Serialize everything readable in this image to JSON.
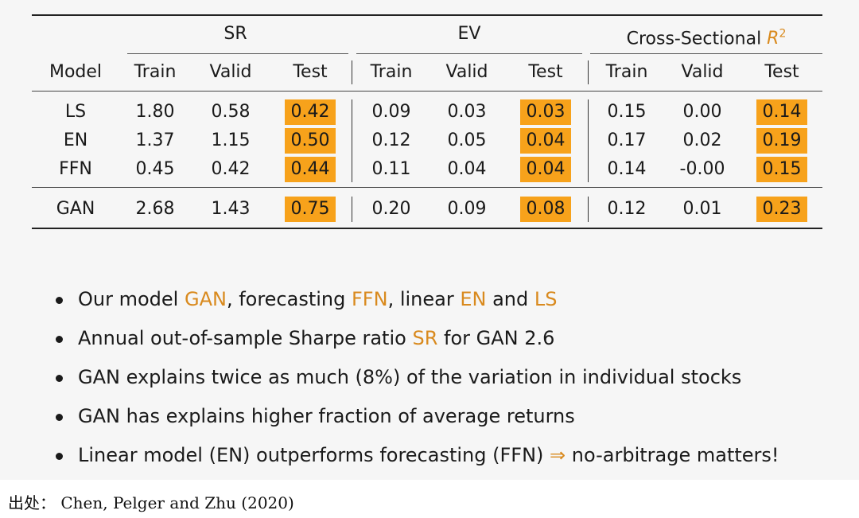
{
  "table": {
    "groups": {
      "sr": "SR",
      "ev": "EV",
      "cs_prefix": "Cross-Sectional ",
      "cs_r": "R",
      "cs_sup": "2"
    },
    "headers": [
      "Model",
      "Train",
      "Valid",
      "Test",
      "Train",
      "Valid",
      "Test",
      "Train",
      "Valid",
      "Test"
    ],
    "rows": [
      {
        "model": "LS",
        "values": [
          "1.80",
          "0.58",
          "0.42",
          "0.09",
          "0.03",
          "0.03",
          "0.15",
          "0.00",
          "0.14"
        ]
      },
      {
        "model": "EN",
        "values": [
          "1.37",
          "1.15",
          "0.50",
          "0.12",
          "0.05",
          "0.04",
          "0.17",
          "0.02",
          "0.19"
        ]
      },
      {
        "model": "FFN",
        "values": [
          "0.45",
          "0.42",
          "0.44",
          "0.11",
          "0.04",
          "0.04",
          "0.14",
          "-0.00",
          "0.15"
        ]
      },
      {
        "model": "GAN",
        "values": [
          "2.68",
          "1.43",
          "0.75",
          "0.20",
          "0.09",
          "0.08",
          "0.12",
          "0.01",
          "0.23"
        ]
      }
    ],
    "highlight_color": "#f7a21b"
  },
  "bullets": [
    [
      {
        "t": "Our model ",
        "c": false
      },
      {
        "t": "GAN",
        "c": true
      },
      {
        "t": ", forecasting ",
        "c": false
      },
      {
        "t": "FFN",
        "c": true
      },
      {
        "t": ", linear ",
        "c": false
      },
      {
        "t": "EN",
        "c": true
      },
      {
        "t": " and ",
        "c": false
      },
      {
        "t": "LS",
        "c": true
      }
    ],
    [
      {
        "t": "Annual out-of-sample Sharpe ratio ",
        "c": false
      },
      {
        "t": "SR",
        "c": true
      },
      {
        "t": " for GAN 2.6",
        "c": false
      }
    ],
    [
      {
        "t": "GAN explains twice as much (8%) of the variation in individual stocks",
        "c": false
      }
    ],
    [
      {
        "t": "GAN has explains higher fraction of average returns",
        "c": false
      }
    ],
    [
      {
        "t": "Linear model (EN) outperforms forecasting (FFN) ",
        "c": false
      },
      {
        "t": "⇒",
        "c": true
      },
      {
        "t": " no-arbitrage matters!",
        "c": false
      }
    ]
  ],
  "accent_color": "#d98a1e",
  "caption": "出处：  Chen, Pelger and Zhu (2020)"
}
